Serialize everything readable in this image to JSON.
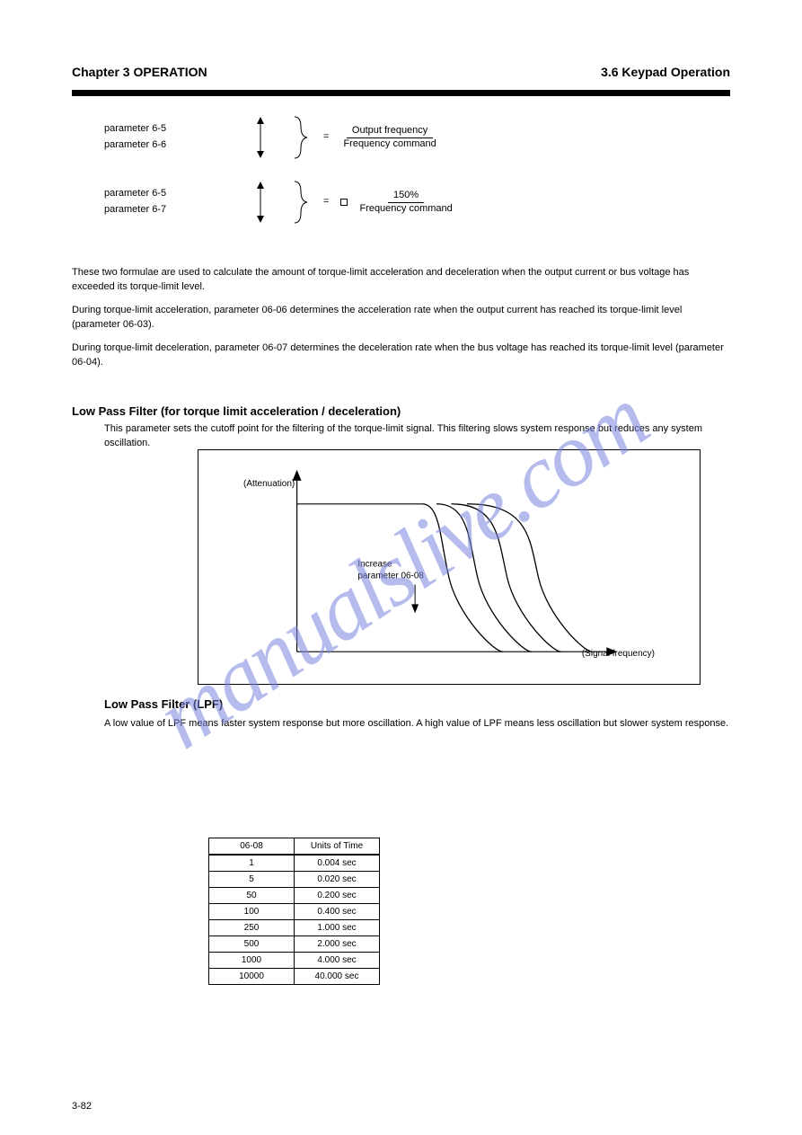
{
  "header": {
    "title": "Chapter 3  OPERATION",
    "right": "3.6  Keypad Operation"
  },
  "ratios": {
    "row1": {
      "left_top": "parameter 6-5",
      "left_bot": "parameter 6-6",
      "num": "Output frequency",
      "den": "Frequency command"
    },
    "row2": {
      "left_top": "parameter 6-5",
      "left_bot": "parameter 6-7",
      "num": "150%",
      "den": "Frequency command",
      "prefix_square": true
    }
  },
  "formulae_text": {
    "p1": "These two formulae are used to calculate the amount of torque-limit acceleration and deceleration when the output current or bus voltage has exceeded its torque-limit level.",
    "p2": "During torque-limit acceleration, parameter 06-06 determines the acceleration rate when the output current has reached its torque-limit level (parameter 06-03).",
    "p3": "During torque-limit deceleration, parameter 06-07 determines the deceleration rate when the bus voltage has reached its torque-limit level (parameter 06-04)."
  },
  "section": {
    "title": "Low Pass Filter (for torque limit acceleration / deceleration)",
    "body": "This parameter sets the cutoff point for the filtering of the torque-limit signal. This filtering slows system response but reduces any system oscillation."
  },
  "chart": {
    "y_label": "(Attenuation)",
    "x_label": "(Signal frequency)",
    "curve_note_top": "Increase",
    "curve_note_bot": "parameter 06-08",
    "background": "#ffffff",
    "axis_color": "#000000",
    "curve_color": "#000000",
    "curves": [
      {
        "shift": 0
      },
      {
        "shift": 32
      },
      {
        "shift": 65
      },
      {
        "shift": 100
      }
    ]
  },
  "lpf": {
    "big": "Low Pass Filter (LPF)",
    "lead": "A low value of LPF means faster system response but more oscillation. A high value of LPF means less oscillation but slower system response.",
    "table_head1": "06-08",
    "table_head2": "Units of Time",
    "rows": [
      [
        "1",
        "0.004 sec"
      ],
      [
        "5",
        "0.020 sec"
      ],
      [
        "50",
        "0.200 sec"
      ],
      [
        "100",
        "0.400 sec"
      ],
      [
        "250",
        "1.000 sec"
      ],
      [
        "500",
        "2.000 sec"
      ],
      [
        "1000",
        "4.000 sec"
      ],
      [
        "10000",
        "40.000 sec"
      ]
    ]
  },
  "watermark": "manualslive.com",
  "page_number": "3-82"
}
